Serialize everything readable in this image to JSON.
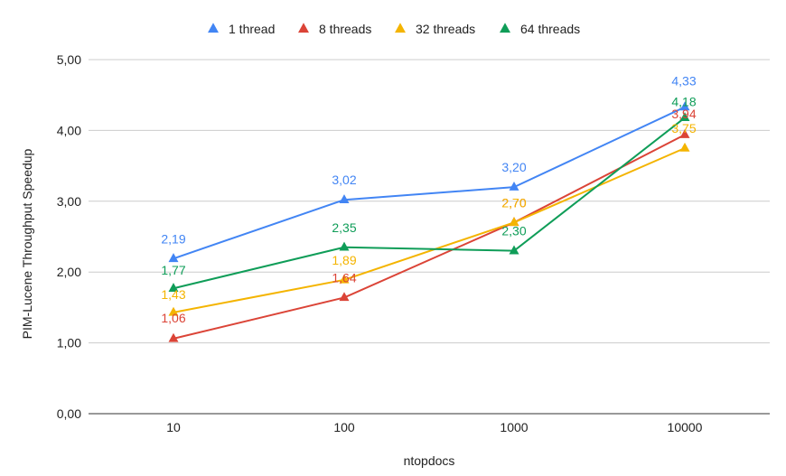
{
  "chart_data": {
    "type": "line",
    "title": "",
    "xlabel": "ntopdocs",
    "ylabel": "PIM-Lucene Throughput Speedup",
    "categories": [
      "10",
      "100",
      "1000",
      "10000"
    ],
    "y_ticks": [
      "0,00",
      "1,00",
      "2,00",
      "3,00",
      "4,00",
      "5,00"
    ],
    "ylim": [
      0,
      5
    ],
    "grid": true,
    "legend_position": "top",
    "marker": "triangle",
    "series": [
      {
        "name": "1 thread",
        "color": "#4285f4",
        "values": [
          2.19,
          3.02,
          3.2,
          4.33
        ],
        "labels": [
          "2,19",
          "3,02",
          "3,20",
          "4,33"
        ]
      },
      {
        "name": "8 threads",
        "color": "#db4437",
        "values": [
          1.06,
          1.64,
          2.7,
          3.94
        ],
        "labels": [
          "1,06",
          "1,64",
          "2,70",
          "3,94"
        ]
      },
      {
        "name": "32 threads",
        "color": "#f4b400",
        "values": [
          1.43,
          1.89,
          2.7,
          3.75
        ],
        "labels": [
          "1,43",
          "1,89",
          "2,70",
          "3,75"
        ]
      },
      {
        "name": "64 threads",
        "color": "#0f9d58",
        "values": [
          1.77,
          2.35,
          2.3,
          4.18
        ],
        "labels": [
          "1,77",
          "2,35",
          "2,30",
          "4,18"
        ]
      }
    ]
  }
}
